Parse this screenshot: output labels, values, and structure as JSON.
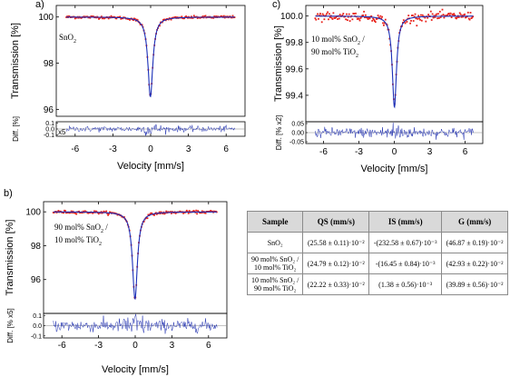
{
  "chart_data": [
    {
      "panel": "a)",
      "type": "scatter",
      "sample_label": [
        "SnO",
        "2",
        ""
      ],
      "ylabel": "Transmission [%]",
      "diff_label": "Diff. [%]",
      "diff_scale": "x5",
      "xlabel": "Velocity [mm/s]",
      "xlim": [
        -7.5,
        7.5
      ],
      "ylim": [
        95.7,
        100.5
      ],
      "yticks": [
        "96",
        "98",
        "100"
      ],
      "diff_ylim": [
        -0.12,
        0.12
      ],
      "diff_yticks": [
        "0.1",
        "0.0",
        "-0.1"
      ],
      "xticks": [
        "-6",
        "-3",
        "0",
        "3",
        "6"
      ],
      "params": {
        "depth": 3.45,
        "center": -0.02,
        "gamma": 0.47,
        "diff_amp": 0.04
      }
    },
    {
      "panel": "b)",
      "type": "scatter",
      "sample_label": [
        "90 mol% SnO",
        "2",
        " /",
        "10 mol% TiO",
        "2",
        ""
      ],
      "ylabel": "Transmission [%]",
      "diff_label": "Diff. [% x5]",
      "diff_scale": "",
      "xlabel": "Velocity [mm/s]",
      "xlim": [
        -7.5,
        7.5
      ],
      "ylim": [
        94.0,
        100.6
      ],
      "yticks": [
        "96",
        "98",
        "100"
      ],
      "diff_ylim": [
        -0.12,
        0.12
      ],
      "diff_yticks": [
        "0.1",
        "0.0",
        "-0.1"
      ],
      "xticks": [
        "-6",
        "-3",
        "0",
        "3",
        "6"
      ],
      "params": {
        "depth": 5.15,
        "center": -0.02,
        "gamma": 0.48,
        "diff_amp": 0.05
      }
    },
    {
      "panel": "c)",
      "type": "scatter",
      "sample_label": [
        "10 mol% SnO",
        "2",
        " /",
        "90 mol% TiO",
        "2",
        ""
      ],
      "ylabel": "Transmission [%]",
      "diff_label": "Diff. [% x2]",
      "diff_scale": "",
      "xlabel": "Velocity [mm/s]",
      "xlim": [
        -7.5,
        7.5
      ],
      "ylim": [
        99.2,
        100.08
      ],
      "yticks": [
        "99.4",
        "99.6",
        "99.8",
        "100.0"
      ],
      "diff_ylim": [
        -0.12,
        0.12
      ],
      "diff_yticks": [
        "0.05",
        "0.00",
        "-0.05"
      ],
      "xticks": [
        "-6",
        "-3",
        "0",
        "3",
        "6"
      ],
      "params": {
        "depth": 0.69,
        "center": 0.01,
        "gamma": 0.43,
        "diff_amp": 0.045
      }
    }
  ],
  "table": {
    "headers": [
      "Sample",
      "QS (mm/s)",
      "IS (mm/s)",
      "G (mm/s)"
    ],
    "rows": [
      [
        "SnO₂",
        "(25.58 ± 0.11)·10⁻²",
        "-(232.58 ± 0.67)·10⁻³",
        "(46.87 ± 0.19)·10⁻²"
      ],
      [
        "90 mol% SnO₂ /\n10 mol% TiO₂",
        "(24.79 ± 0.12)·10⁻²",
        "-(16.45 ± 0.84)·10⁻³",
        "(42.93 ± 0.22)·10⁻²"
      ],
      [
        "10 mol% SnO₂ /\n90 mol% TiO₂",
        "(22.22 ± 0.33)·10⁻²",
        "(1.38 ± 0.56)·10⁻³",
        "(39.89 ± 0.56)·10⁻²"
      ]
    ]
  },
  "colors": {
    "data": "#e8221a",
    "fit": "#1a2fb8",
    "axis": "#000000",
    "diff": "#2030b0",
    "zero": "#888888",
    "header": "#d9d9d9"
  }
}
